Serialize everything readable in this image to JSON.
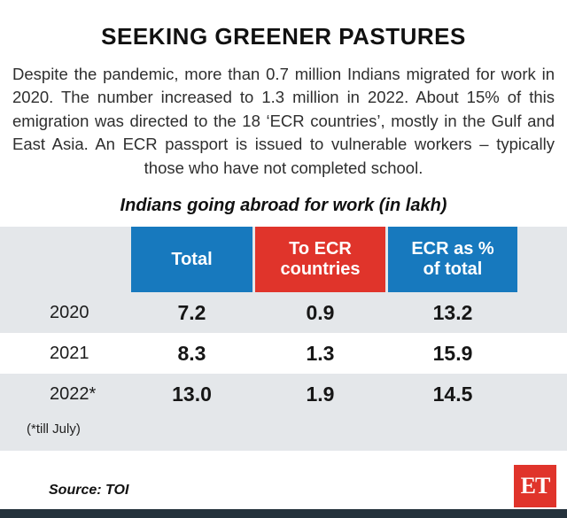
{
  "title": "SEEKING GREENER PASTURES",
  "intro": "Despite the pandemic, more than 0.7 million Indians migrated for work in 2020. The number increased to 1.3 million in 2022. About 15% of this emigration was directed to the 18 ‘ECR countries’, mostly in the Gulf and East Asia. An ECR passport is issued to vulnerable workers – typically those who have not completed school.",
  "chart_data": {
    "type": "table",
    "title": "Indians going abroad for work (in lakh)",
    "headers": [
      {
        "label": "Total",
        "color": "#1779be"
      },
      {
        "label": "To ECR\ncountries",
        "color": "#e0342b"
      },
      {
        "label": "ECR as %\nof total",
        "color": "#1779be"
      }
    ],
    "rows": [
      {
        "year": "2020",
        "total": "7.2",
        "ecr": "0.9",
        "pct": "13.2"
      },
      {
        "year": "2021",
        "total": "8.3",
        "ecr": "1.3",
        "pct": "15.9"
      },
      {
        "year": "2022*",
        "total": "13.0",
        "ecr": "1.9",
        "pct": "14.5"
      }
    ],
    "footnote": "(*till July)"
  },
  "source": "Source: TOI",
  "logo_text": "ET",
  "colors": {
    "header_blue": "#1779be",
    "header_red": "#e0342b",
    "panel_gray": "#e4e7ea",
    "bottom_bar": "#24323c"
  }
}
